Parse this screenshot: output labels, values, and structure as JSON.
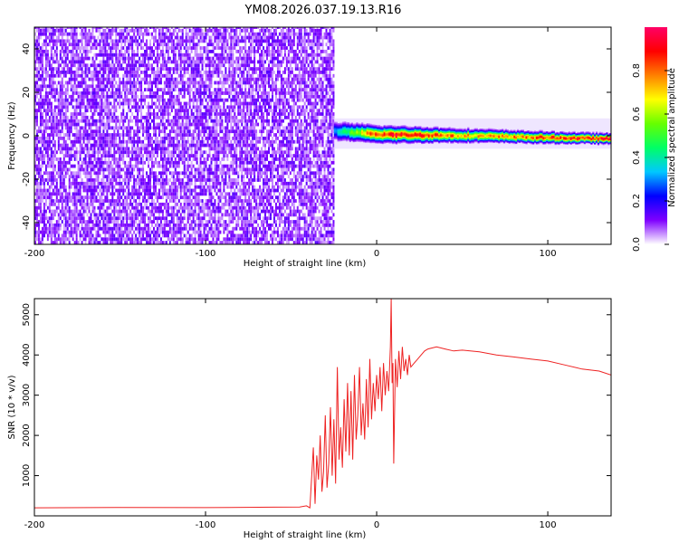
{
  "title": "YM08.2026.037.19.13.R16",
  "chart_data": [
    {
      "type": "heatmap",
      "xlabel": "Height of straight line (km)",
      "ylabel": "Frequency (Hz)",
      "xlim": [
        -200,
        137
      ],
      "ylim": [
        -50,
        50
      ],
      "x_ticks": [
        -200,
        -100,
        0,
        100
      ],
      "x_tick_labels": [
        "-200",
        "-100",
        "0",
        "100"
      ],
      "y_ticks": [
        -40,
        -20,
        0,
        20,
        40
      ],
      "y_tick_labels": [
        "-40",
        "-20",
        "0",
        "20",
        "40"
      ],
      "noise_region": {
        "x": [
          -200,
          -25
        ],
        "y": [
          -50,
          50
        ],
        "amplitude_range": [
          0.0,
          0.15
        ]
      },
      "signal_trace": {
        "center_freq": [
          [
            -25,
            2
          ],
          [
            0,
            0.5
          ],
          [
            50,
            0
          ],
          [
            100,
            -1
          ],
          [
            137,
            -1.5
          ]
        ],
        "peak_amplitude": [
          [
            -25,
            0.3
          ],
          [
            0,
            0.9
          ],
          [
            20,
            0.95
          ],
          [
            50,
            0.75
          ],
          [
            80,
            0.8
          ],
          [
            137,
            0.95
          ]
        ],
        "half_width_hz": [
          [
            -25,
            3
          ],
          [
            0,
            2.5
          ],
          [
            50,
            2
          ],
          [
            137,
            1.5
          ]
        ],
        "faint_envelope": {
          "x": [
            -25,
            137
          ],
          "y": [
            -6,
            8
          ]
        }
      },
      "colorbar": {
        "label": "Normalized spectral amplitude",
        "range": [
          0,
          1
        ],
        "ticks": [
          0.0,
          0.2,
          0.4,
          0.6,
          0.8
        ],
        "tick_labels": [
          "0.0",
          "0.2",
          "0.4",
          "0.6",
          "0.8"
        ],
        "colormap": [
          "#ffffff",
          "#7f00ff",
          "#0000ff",
          "#00c8ff",
          "#00ff66",
          "#66ff00",
          "#ffff00",
          "#ff8000",
          "#ff0000",
          "#ff0066"
        ]
      },
      "grid": false
    },
    {
      "type": "line",
      "xlabel": "Height of straight line (km)",
      "ylabel": "SNR (10 * v/v)",
      "xlim": [
        -200,
        137
      ],
      "ylim": [
        0,
        5400
      ],
      "x_ticks": [
        -200,
        -100,
        0,
        100
      ],
      "x_tick_labels": [
        "-200",
        "-100",
        "0",
        "100"
      ],
      "y_ticks": [
        1000,
        2000,
        3000,
        4000,
        5000
      ],
      "y_tick_labels": [
        "1000",
        "2000",
        "3000",
        "4000",
        "5000"
      ],
      "color": "#ee2222",
      "series": [
        {
          "x": [
            -200,
            -150,
            -100,
            -60,
            -45,
            -41,
            -39,
            -37,
            -36,
            -35,
            -34,
            -33,
            -32,
            -31,
            -30,
            -29,
            -28,
            -27,
            -26,
            -25,
            -24,
            -23,
            -22,
            -21,
            -20,
            -19,
            -18,
            -17,
            -16,
            -15,
            -14,
            -13,
            -12,
            -11,
            -10,
            -9,
            -8,
            -7,
            -6,
            -5,
            -4,
            -3,
            -2,
            -1,
            0,
            1,
            2,
            3,
            4,
            5,
            6,
            7,
            8,
            8.5,
            9,
            9.5,
            10,
            11,
            12,
            13,
            14,
            15,
            16,
            17,
            18,
            19,
            20,
            22,
            24,
            26,
            28,
            30,
            35,
            40,
            45,
            50,
            60,
            70,
            80,
            90,
            100,
            110,
            120,
            130,
            137
          ],
          "values": [
            200,
            210,
            205,
            215,
            220,
            250,
            200,
            1700,
            300,
            1500,
            900,
            2000,
            600,
            1100,
            2500,
            700,
            1300,
            2700,
            1000,
            2400,
            800,
            3700,
            1400,
            2200,
            1200,
            2900,
            1600,
            3300,
            1500,
            3100,
            1400,
            3500,
            1900,
            2500,
            3700,
            2000,
            2800,
            1900,
            3400,
            2200,
            3900,
            2400,
            3300,
            2600,
            3500,
            2900,
            3700,
            2600,
            3800,
            3000,
            3600,
            3100,
            4200,
            5400,
            3300,
            3800,
            1300,
            3900,
            3200,
            4100,
            3400,
            4200,
            3600,
            3900,
            3500,
            4000,
            3700,
            3800,
            3900,
            4000,
            4100,
            4150,
            4200,
            4150,
            4100,
            4120,
            4080,
            4000,
            3950,
            3900,
            3850,
            3750,
            3650,
            3600,
            3500
          ]
        }
      ],
      "grid": false
    }
  ]
}
